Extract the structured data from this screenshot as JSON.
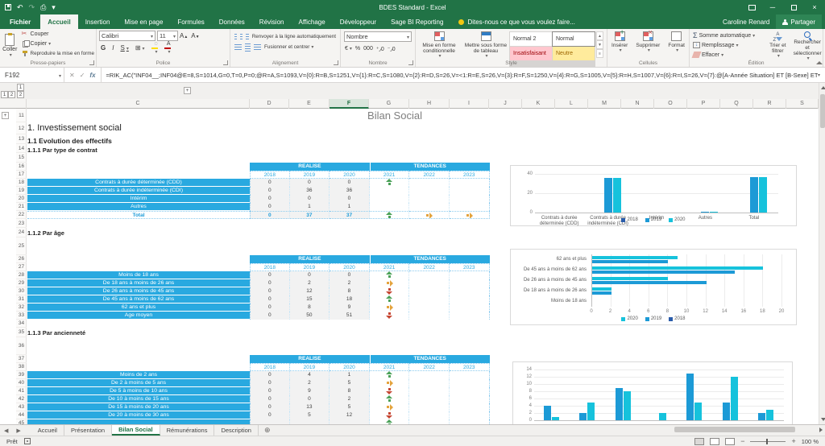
{
  "window": {
    "title": "BDES Standard - Excel",
    "user": "Caroline Renard",
    "share": "Partager"
  },
  "ribbon": {
    "file_tab": "Fichier",
    "tabs": [
      "Accueil",
      "Insertion",
      "Mise en page",
      "Formules",
      "Données",
      "Révision",
      "Affichage",
      "Développeur",
      "Sage BI Reporting"
    ],
    "active_tab": "Accueil",
    "tell_me": "Dites-nous ce que vous voulez faire...",
    "groups": {
      "clipboard": {
        "label": "Presse-papiers",
        "paste": "Coller",
        "cut": "Couper",
        "copy": "Copier",
        "painter": "Reproduire la mise en forme"
      },
      "font": {
        "label": "Police",
        "family": "Calibri",
        "size": "11",
        "bold": "G",
        "italic": "I",
        "underline": "S"
      },
      "alignment": {
        "label": "Alignement",
        "wrap": "Renvoyer à la ligne automatiquement",
        "merge": "Fusionner et centrer"
      },
      "number": {
        "label": "Nombre",
        "format": "Nombre"
      },
      "style": {
        "label": "Style",
        "conditional": "Mise en forme conditionnelle",
        "format_table": "Mettre sous forme de tableau",
        "gallery": [
          "Normal 2",
          "Normal",
          "Insatisfaisant",
          "Neutre"
        ]
      },
      "cells": {
        "label": "Cellules",
        "insert": "Insérer",
        "delete": "Supprimer",
        "format": "Format"
      },
      "editing": {
        "label": "Édition",
        "autosum": "Somme automatique",
        "fill": "Remplissage",
        "clear": "Effacer",
        "sort": "Trier et filtrer",
        "find": "Rechercher et sélectionner"
      }
    }
  },
  "formula_bar": {
    "name_box": "F192",
    "fx": "fx",
    "formula": "=RIK_AC(\"INF04__;INF04@E=8,S=1014,G=0,T=0,P=0;@R=A,S=1093,V={0}:R=B,S=1251,V={1}:R=C,S=1080,V={2}:R=D,S=26,V=<1:R=E,S=26,V={3}:R=F,S=1250,V={4}:R=G,S=1005,V={5}:R=H,S=1007,V={6}:R=I,S=26,V={7}:@[A-Année Situation] ET [B-Sexe] ET \"&\"[C-Code"
  },
  "grid": {
    "columns": [
      "C",
      "D",
      "E",
      "F",
      "G",
      "H",
      "I",
      "J",
      "K",
      "L",
      "M",
      "N",
      "O",
      "P",
      "Q",
      "R",
      "S"
    ],
    "selected_column": "F",
    "row_numbers": [
      11,
      12,
      13,
      14,
      15,
      16,
      17,
      18,
      19,
      20,
      21,
      22,
      23,
      24,
      25,
      26,
      27,
      28,
      29,
      30,
      31,
      32,
      33,
      34,
      35,
      36,
      37,
      38,
      39,
      40,
      41,
      42,
      43,
      44,
      45
    ],
    "outline": {
      "col_levels": [
        "1",
        "2"
      ],
      "row_levels": [
        "1",
        "2"
      ],
      "expand": "+"
    }
  },
  "content": {
    "sheet_title": "Bilan Social",
    "h1": "1.  Investissement social",
    "h2": "1.1  Evolution des effectifs",
    "s1": "1.1.1  Par type de contrat",
    "s2": "1.1.2  Par âge",
    "s3": "1.1.3  Par ancienneté",
    "realise": "REALISE",
    "tendances": "TENDANCES",
    "years_r": [
      "2018",
      "2019",
      "2020"
    ],
    "years_t": [
      "2021",
      "2022",
      "2023"
    ]
  },
  "tables": [
    {
      "rows": [
        {
          "label": "Contrats à durée déterminée (CDD)",
          "v": [
            "0",
            "0",
            "0"
          ],
          "t": [
            "up",
            "",
            ""
          ]
        },
        {
          "label": "Contrats à durée indéterminée (CDI)",
          "v": [
            "0",
            "36",
            "36"
          ],
          "t": [
            "",
            "",
            ""
          ]
        },
        {
          "label": "Intérim",
          "v": [
            "0",
            "0",
            "0"
          ],
          "t": [
            "",
            "",
            ""
          ]
        },
        {
          "label": "Autres",
          "v": [
            "0",
            "1",
            "1"
          ],
          "t": [
            "",
            "",
            ""
          ]
        }
      ],
      "total": {
        "label": "Total",
        "v": [
          "0",
          "37",
          "37"
        ],
        "t": [
          "up",
          "right",
          "right"
        ]
      }
    },
    {
      "rows": [
        {
          "label": "Moins de 18 ans",
          "v": [
            "0",
            "0",
            "0"
          ],
          "t": [
            "up",
            "",
            ""
          ]
        },
        {
          "label": "De 18 ans à moins de 26 ans",
          "v": [
            "0",
            "2",
            "2"
          ],
          "t": [
            "right",
            "",
            ""
          ]
        },
        {
          "label": "De 26 ans à moins de 45 ans",
          "v": [
            "0",
            "12",
            "8"
          ],
          "t": [
            "down",
            "",
            ""
          ]
        },
        {
          "label": "De 45 ans à moins de 62 ans",
          "v": [
            "0",
            "15",
            "18"
          ],
          "t": [
            "up",
            "",
            ""
          ]
        },
        {
          "label": "62 ans et plus",
          "v": [
            "0",
            "8",
            "9"
          ],
          "t": [
            "right",
            "",
            ""
          ]
        },
        {
          "label": "Age moyen",
          "v": [
            "0",
            "50",
            "51"
          ],
          "t": [
            "down",
            "",
            ""
          ]
        }
      ]
    },
    {
      "rows": [
        {
          "label": "Moins de 2 ans",
          "v": [
            "0",
            "4",
            "1"
          ],
          "t": [
            "up",
            "",
            ""
          ]
        },
        {
          "label": "De 2 à moins de 5 ans",
          "v": [
            "0",
            "2",
            "5"
          ],
          "t": [
            "right",
            "",
            ""
          ]
        },
        {
          "label": "De 5 à moins de 10 ans",
          "v": [
            "0",
            "9",
            "8"
          ],
          "t": [
            "down",
            "",
            ""
          ]
        },
        {
          "label": "De 10 à moins de 15 ans",
          "v": [
            "0",
            "0",
            "2"
          ],
          "t": [
            "up",
            "",
            ""
          ]
        },
        {
          "label": "De 15 à moins de 20 ans",
          "v": [
            "0",
            "13",
            "5"
          ],
          "t": [
            "right",
            "",
            ""
          ]
        },
        {
          "label": "De 20 à moins de 30 ans",
          "v": [
            "0",
            "5",
            "12"
          ],
          "t": [
            "down",
            "",
            ""
          ]
        }
      ],
      "partial_row": {
        "t": [
          "up",
          "",
          ""
        ]
      }
    }
  ],
  "chart_data": [
    {
      "type": "bar",
      "categories": [
        "Contrats à durée déterminée (CDD)",
        "Contrats à durée indéterminée (CDI)",
        "Intérim",
        "Autres",
        "Total"
      ],
      "series": [
        {
          "name": "2018",
          "values": [
            0,
            0,
            0,
            0,
            0
          ],
          "color": "#2A5CAA"
        },
        {
          "name": "2019",
          "values": [
            0,
            36,
            0,
            1,
            37
          ],
          "color": "#1C9AD6"
        },
        {
          "name": "2020",
          "values": [
            0,
            36,
            0,
            1,
            37
          ],
          "color": "#16C2DC"
        }
      ],
      "ylim": [
        0,
        40
      ],
      "yticks": [
        0,
        20,
        40
      ],
      "legend": "bottom"
    },
    {
      "type": "barh",
      "categories": [
        "62 ans et plus",
        "De 45 ans à moins de 62 ans",
        "De 26 ans à moins de 45 ans",
        "De 18 ans à moins de 26 ans",
        "Moins de 18 ans"
      ],
      "series": [
        {
          "name": "2020",
          "values": [
            9,
            18,
            8,
            2,
            0
          ],
          "color": "#16C2DC"
        },
        {
          "name": "2019",
          "values": [
            8,
            15,
            12,
            2,
            0
          ],
          "color": "#1C9AD6"
        },
        {
          "name": "2018",
          "values": [
            0,
            0,
            0,
            0,
            0
          ],
          "color": "#2A5CAA"
        }
      ],
      "xlim": [
        0,
        20
      ],
      "xticks": [
        0,
        2,
        4,
        6,
        8,
        10,
        12,
        14,
        16,
        18,
        20
      ],
      "legend": "bottom"
    },
    {
      "type": "bar",
      "categories": [
        "",
        "",
        "",
        "",
        "",
        "",
        ""
      ],
      "series": [
        {
          "name": "2019",
          "values": [
            4,
            2,
            9,
            0,
            13,
            5,
            2
          ],
          "color": "#1C9AD6"
        },
        {
          "name": "2020",
          "values": [
            1,
            5,
            8,
            2,
            5,
            12,
            3
          ],
          "color": "#16C2DC"
        }
      ],
      "ylim": [
        0,
        14
      ],
      "yticks": [
        0,
        2,
        4,
        6,
        8,
        10,
        12,
        14
      ],
      "legend": "none"
    }
  ],
  "sheet_tabs": {
    "items": [
      "Accueil",
      "Présentation",
      "Bilan Social",
      "Rémunérations",
      "Description"
    ],
    "active": "Bilan Social"
  },
  "status_bar": {
    "mode": "Prêt",
    "zoom": "100 %"
  }
}
